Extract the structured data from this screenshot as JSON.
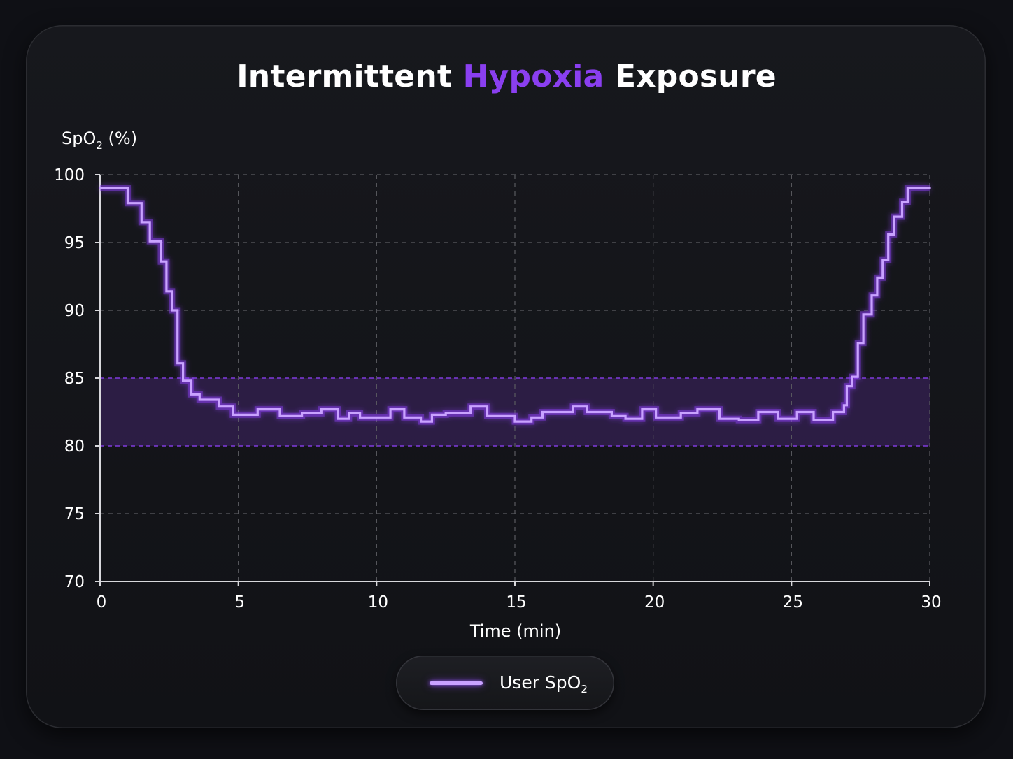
{
  "chart_data": {
    "type": "line",
    "title_parts": [
      "Intermittent ",
      "Hypoxia",
      " Exposure"
    ],
    "title_accent_color": "#8a3ff0",
    "ylabel": {
      "main": "SpO",
      "sub": "2",
      "suffix": " (%)"
    },
    "xlabel": "Time (min)",
    "xlim": [
      0,
      30
    ],
    "ylim": [
      70,
      100
    ],
    "x_ticks": [
      "0",
      "5",
      "10",
      "15",
      "20",
      "25",
      "30"
    ],
    "y_ticks": [
      "70",
      "75",
      "80",
      "85",
      "90",
      "95",
      "100"
    ],
    "grid": true,
    "step": true,
    "target_band": {
      "y_min": 80,
      "y_max": 85,
      "color": "#8a3ff0"
    },
    "series": [
      {
        "name": "User SpO2",
        "color": "#c9a2ff",
        "x": [
          0,
          1.0,
          1.5,
          1.8,
          2.2,
          2.4,
          2.6,
          2.8,
          3.0,
          3.3,
          3.6,
          4.3,
          4.8,
          5.7,
          6.5,
          7.3,
          8.0,
          8.6,
          9.0,
          9.4,
          10.5,
          11.0,
          11.6,
          12.0,
          12.5,
          13.4,
          14.0,
          15.0,
          15.6,
          16.0,
          16.6,
          17.1,
          17.6,
          18.5,
          19.0,
          19.6,
          20.1,
          21.0,
          21.6,
          22.4,
          23.1,
          23.8,
          24.5,
          25.2,
          25.8,
          26.5,
          26.9,
          27.0,
          27.2,
          27.4,
          27.6,
          27.9,
          28.1,
          28.3,
          28.5,
          28.7,
          29.0,
          29.2,
          30.0
        ],
        "y": [
          99.0,
          97.9,
          96.5,
          95.1,
          93.6,
          91.4,
          90.0,
          86.1,
          84.8,
          83.8,
          83.4,
          82.9,
          82.3,
          82.7,
          82.2,
          82.4,
          82.7,
          82.0,
          82.4,
          82.1,
          82.7,
          82.1,
          81.8,
          82.3,
          82.4,
          82.9,
          82.2,
          81.8,
          82.1,
          82.5,
          82.5,
          82.9,
          82.5,
          82.2,
          82.0,
          82.7,
          82.1,
          82.4,
          82.7,
          82.0,
          81.9,
          82.5,
          82.0,
          82.5,
          81.9,
          82.5,
          83.0,
          84.4,
          85.1,
          87.6,
          89.7,
          91.1,
          92.4,
          93.7,
          95.6,
          96.9,
          98.0,
          99.0,
          99.0
        ]
      }
    ],
    "legend": {
      "position": "bottom-center",
      "label_main": "User SpO",
      "label_sub": "2"
    }
  }
}
